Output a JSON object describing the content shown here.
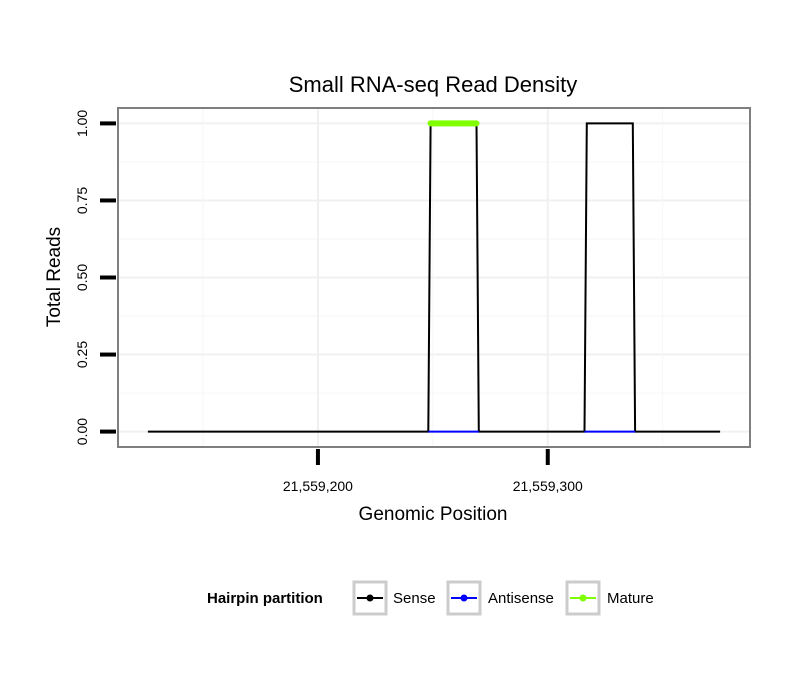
{
  "chart_data": {
    "type": "line",
    "title": "Small RNA-seq Read Density",
    "xlabel": "Genomic Position",
    "ylabel": "Total Reads",
    "xlim": [
      21559113,
      21559388
    ],
    "ylim": [
      -0.05,
      1.05
    ],
    "x_ticks": [
      21559200,
      21559300
    ],
    "x_tick_labels": [
      "21,559,200",
      "21,559,300"
    ],
    "y_ticks": [
      0,
      0.25,
      0.5,
      0.75,
      1
    ],
    "y_tick_labels": [
      "0.00",
      "0.25",
      "0.50",
      "0.75",
      "1.00"
    ],
    "grid": true,
    "legend_title": "Hairpin partition",
    "legend_position": "bottom",
    "series": [
      {
        "name": "Sense",
        "color": "#000000",
        "x": [
          21559126,
          21559248,
          21559249,
          21559269,
          21559270,
          21559316,
          21559317,
          21559337,
          21559338,
          21559375
        ],
        "values": [
          0,
          0,
          1,
          1,
          0,
          0,
          1,
          1,
          0,
          0
        ]
      },
      {
        "name": "Antisense",
        "color": "#0000ff",
        "x": [
          21559248,
          21559270,
          21559316,
          21559338
        ],
        "values": [
          0,
          0,
          0,
          0
        ],
        "segments": [
          [
            0,
            1
          ],
          [
            2,
            3
          ]
        ]
      },
      {
        "name": "Mature",
        "color": "#7fff00",
        "x": [
          21559249,
          21559269
        ],
        "values": [
          1,
          1
        ]
      }
    ]
  }
}
